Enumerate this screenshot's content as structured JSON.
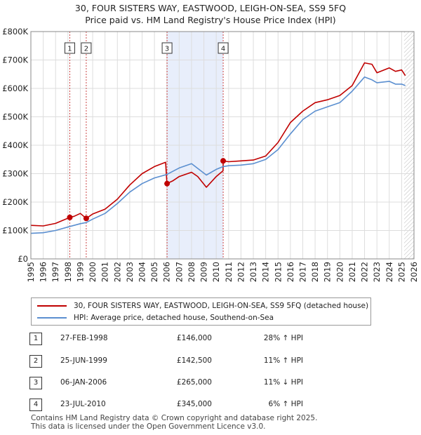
{
  "title_line1": "30, FOUR SISTERS WAY, EASTWOOD, LEIGH-ON-SEA, SS9 5FQ",
  "title_line2": "Price paid vs. HM Land Registry's House Price Index (HPI)",
  "colors": {
    "property": "#c00000",
    "hpi": "#5b8fd0",
    "shade": "#e8eefb",
    "grid": "#dddddd",
    "event": "#cc4444"
  },
  "chart_data": {
    "type": "line",
    "xlim": [
      1995,
      2026
    ],
    "ylim": [
      0,
      800000
    ],
    "yticks": [
      {
        "value": 0,
        "label": "£0"
      },
      {
        "value": 100000,
        "label": "£100K"
      },
      {
        "value": 200000,
        "label": "£200K"
      },
      {
        "value": 300000,
        "label": "£300K"
      },
      {
        "value": 400000,
        "label": "£400K"
      },
      {
        "value": 500000,
        "label": "£500K"
      },
      {
        "value": 600000,
        "label": "£600K"
      },
      {
        "value": 700000,
        "label": "£700K"
      },
      {
        "value": 800000,
        "label": "£800K"
      }
    ],
    "xticks": [
      "1995",
      "1996",
      "1997",
      "1998",
      "1999",
      "2000",
      "2001",
      "2002",
      "2003",
      "2004",
      "2005",
      "2006",
      "2007",
      "2008",
      "2009",
      "2010",
      "2011",
      "2012",
      "2013",
      "2014",
      "2015",
      "2016",
      "2017",
      "2018",
      "2019",
      "2020",
      "2021",
      "2022",
      "2023",
      "2024",
      "2025",
      "2026"
    ],
    "shaded_range": [
      2006.02,
      2010.56
    ],
    "future_hatch_from": 2025.2,
    "series": [
      {
        "name": "30, FOUR SISTERS WAY, EASTWOOD, LEIGH-ON-SEA, SS9 5FQ (detached house)",
        "key": "property",
        "x": [
          1995.0,
          1996.0,
          1997.0,
          1998.15,
          1998.5,
          1999.0,
          1999.48,
          2000.0,
          2001.0,
          2002.0,
          2003.0,
          2004.0,
          2005.0,
          2005.9,
          2006.01,
          2006.5,
          2007.0,
          2008.0,
          2008.5,
          2009.2,
          2010.0,
          2010.55,
          2010.56,
          2011.0,
          2012.0,
          2013.0,
          2014.0,
          2015.0,
          2016.0,
          2017.0,
          2018.0,
          2019.0,
          2020.0,
          2021.0,
          2022.0,
          2022.6,
          2023.0,
          2024.0,
          2024.5,
          2025.0,
          2025.3
        ],
        "y": [
          118000,
          116000,
          125000,
          146000,
          150000,
          160000,
          142500,
          158000,
          175000,
          210000,
          260000,
          300000,
          325000,
          340000,
          265000,
          275000,
          290000,
          305000,
          290000,
          252000,
          290000,
          310000,
          345000,
          342000,
          345000,
          348000,
          362000,
          410000,
          480000,
          520000,
          550000,
          560000,
          575000,
          610000,
          690000,
          685000,
          655000,
          672000,
          660000,
          665000,
          645000
        ]
      },
      {
        "name": "HPI: Average price, detached house, Southend-on-Sea",
        "key": "hpi",
        "x": [
          1995.0,
          1996.0,
          1997.0,
          1998.15,
          1999.0,
          1999.48,
          2000.0,
          2001.0,
          2002.0,
          2003.0,
          2004.0,
          2005.0,
          2006.0,
          2007.0,
          2008.0,
          2009.2,
          2010.0,
          2010.56,
          2011.0,
          2012.0,
          2013.0,
          2014.0,
          2015.0,
          2016.0,
          2017.0,
          2018.0,
          2019.0,
          2020.0,
          2021.0,
          2022.0,
          2022.6,
          2023.0,
          2024.0,
          2024.5,
          2025.0,
          2025.3
        ],
        "y": [
          90000,
          92000,
          100000,
          114000,
          124000,
          128000,
          140000,
          160000,
          195000,
          235000,
          265000,
          285000,
          297000,
          320000,
          335000,
          295000,
          315000,
          325000,
          328000,
          330000,
          335000,
          350000,
          385000,
          440000,
          490000,
          520000,
          535000,
          550000,
          590000,
          640000,
          630000,
          620000,
          625000,
          615000,
          615000,
          610000
        ]
      }
    ],
    "events": [
      {
        "label": "1",
        "x": 1998.15,
        "y": 146000
      },
      {
        "label": "2",
        "x": 1999.48,
        "y": 142500
      },
      {
        "label": "3",
        "x": 2006.02,
        "y": 265000
      },
      {
        "label": "4",
        "x": 2010.56,
        "y": 345000
      }
    ]
  },
  "legend": {
    "property_label": "30, FOUR SISTERS WAY, EASTWOOD, LEIGH-ON-SEA, SS9 5FQ (detached house)",
    "hpi_label": "HPI: Average price, detached house, Southend-on-Sea"
  },
  "transactions": [
    {
      "num": "1",
      "date": "27-FEB-1998",
      "price": "£146,000",
      "hpi": "28% ↑ HPI"
    },
    {
      "num": "2",
      "date": "25-JUN-1999",
      "price": "£142,500",
      "hpi": "11% ↑ HPI"
    },
    {
      "num": "3",
      "date": "06-JAN-2006",
      "price": "£265,000",
      "hpi": "11% ↓ HPI"
    },
    {
      "num": "4",
      "date": "23-JUL-2010",
      "price": "£345,000",
      "hpi": "6% ↑ HPI"
    }
  ],
  "footer": {
    "line1": "Contains HM Land Registry data © Crown copyright and database right 2025.",
    "line2": "This data is licensed under the Open Government Licence v3.0."
  }
}
